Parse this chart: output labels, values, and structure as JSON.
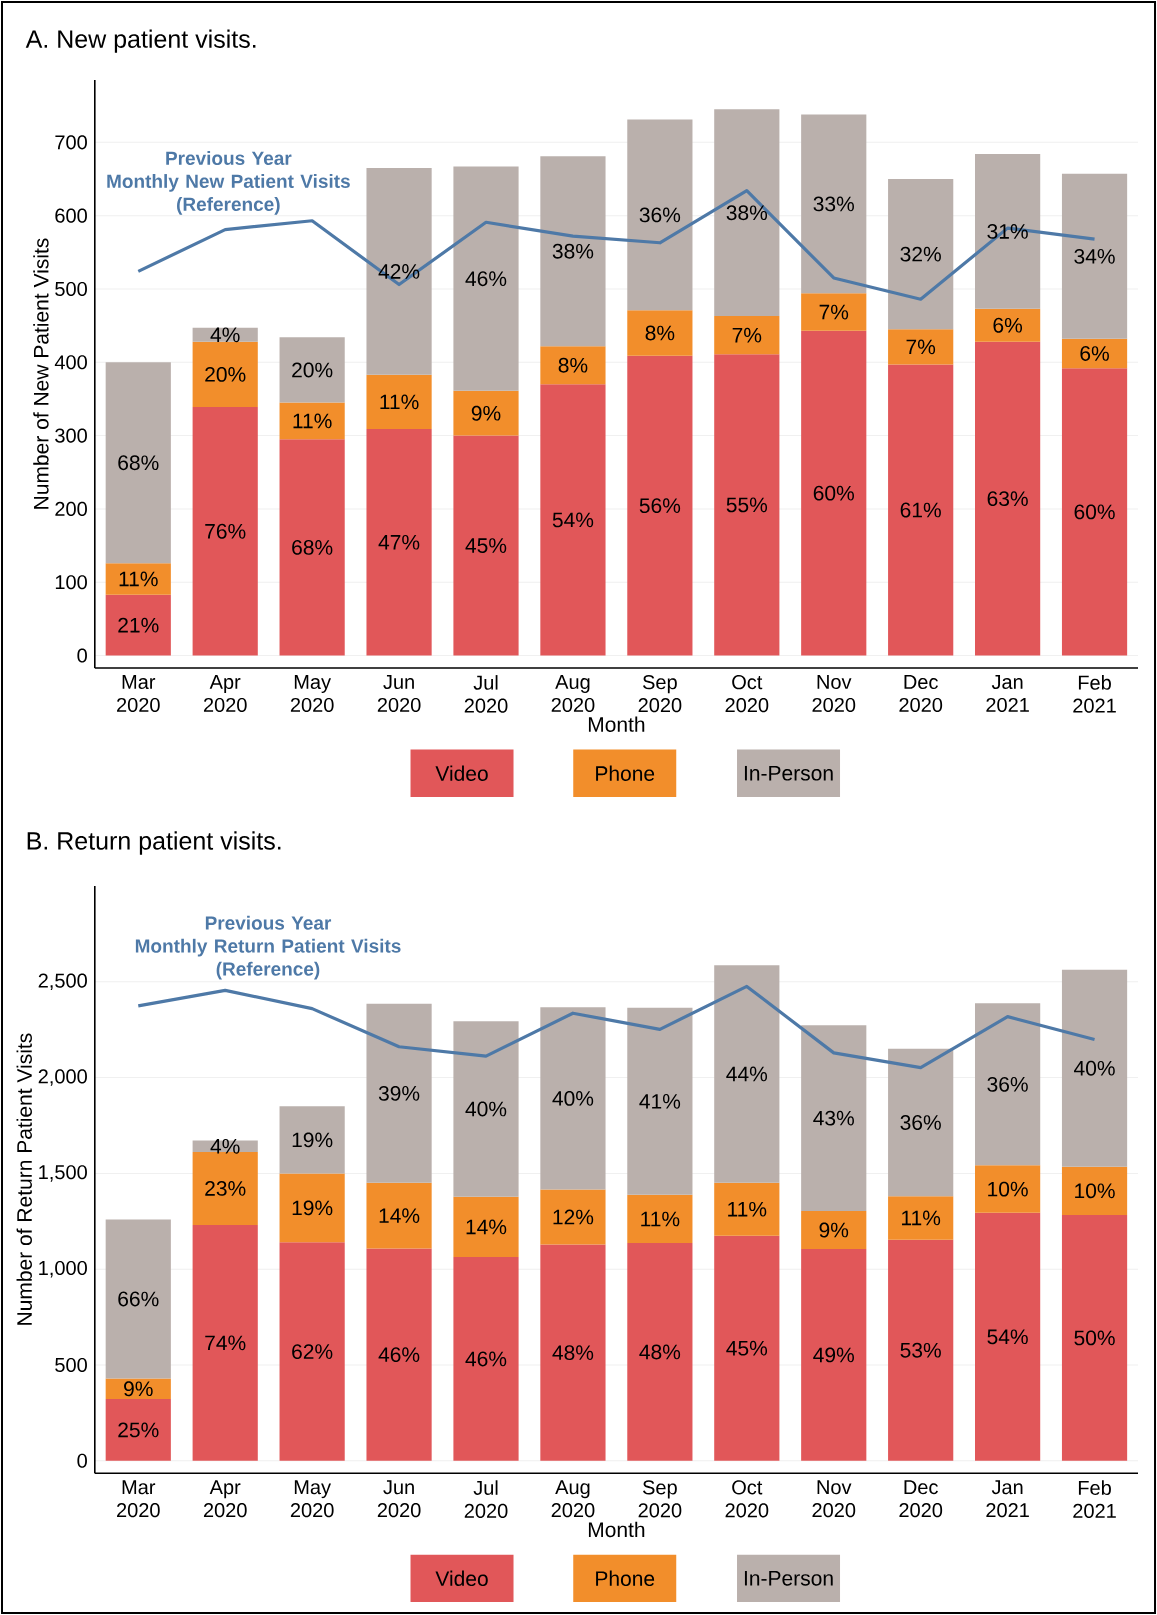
{
  "chart_data": [
    {
      "type": "bar",
      "stacked": true,
      "title": "A. New patient visits.",
      "xlabel": "Month",
      "ylabel": "Number of New Patient Visits",
      "categories": [
        "Mar 2020",
        "Apr 2020",
        "May 2020",
        "Jun 2020",
        "Jul 2020",
        "Aug 2020",
        "Sep 2020",
        "Oct 2020",
        "Nov 2020",
        "Dec 2020",
        "Jan 2021",
        "Feb 2021"
      ],
      "ylim": [
        -17,
        785
      ],
      "yticks": [
        0,
        100,
        200,
        300,
        400,
        500,
        600,
        700
      ],
      "grid": "y",
      "legend": "bottom",
      "series": [
        {
          "name": "Video",
          "color": "#e15759",
          "values": [
            83,
            339,
            295,
            309,
            300,
            370,
            409,
            411,
            443,
            397,
            428,
            392
          ]
        },
        {
          "name": "Phone",
          "color": "#f28e2b",
          "values": [
            43,
            89,
            50,
            74,
            61,
            52,
            62,
            52,
            51,
            48,
            45,
            40
          ]
        },
        {
          "name": "In-Person",
          "color": "#bab0ac",
          "values": [
            274,
            19,
            89,
            282,
            306,
            259,
            260,
            282,
            244,
            205,
            211,
            225
          ]
        },
        {
          "type": "line",
          "name": "Previous Year Monthly New Patient Visits (Reference)",
          "color": "#4e79a7",
          "values": [
            524,
            581,
            593,
            506,
            591,
            572,
            563,
            634,
            515,
            486,
            583,
            568
          ]
        }
      ],
      "annotations": [
        "21%",
        "76%",
        "68%",
        "47%",
        "45%",
        "54%",
        "56%",
        "55%",
        "60%",
        "61%",
        "63%",
        "60%",
        "11%",
        "20%",
        "11%",
        "11%",
        "9%",
        "8%",
        "8%",
        "7%",
        "7%",
        "7%",
        "6%",
        "6%",
        "68%",
        "4%",
        "20%",
        "42%",
        "46%",
        "38%",
        "36%",
        "38%",
        "33%",
        "32%",
        "31%",
        "34%"
      ]
    },
    {
      "type": "bar",
      "stacked": true,
      "title": "B. Return patient visits.",
      "xlabel": "Month",
      "ylabel": "Number of Return Patient Visits",
      "categories": [
        "Mar 2020",
        "Apr 2020",
        "May 2020",
        "Jun 2020",
        "Jul 2020",
        "Aug 2020",
        "Sep 2020",
        "Oct 2020",
        "Nov 2020",
        "Dec 2020",
        "Jan 2021",
        "Feb 2021"
      ],
      "ylim": [
        -65,
        3000
      ],
      "yticks": [
        0,
        500,
        {
          "value": 1000,
          "label": "1,000"
        },
        {
          "value": 1500,
          "label": "1,500"
        },
        {
          "value": 2000,
          "label": "2,000"
        },
        {
          "value": 2500,
          "label": "2,500"
        }
      ],
      "grid": "y",
      "legend": "bottom",
      "series": [
        {
          "name": "Video",
          "color": "#e15759",
          "values": [
            322,
            1231,
            1140,
            1108,
            1063,
            1129,
            1136,
            1175,
            1105,
            1154,
            1294,
            1283
          ]
        },
        {
          "name": "Phone",
          "color": "#f28e2b",
          "values": [
            108,
            381,
            360,
            343,
            315,
            287,
            252,
            276,
            199,
            227,
            248,
            252
          ]
        },
        {
          "name": "In-Person",
          "color": "#bab0ac",
          "values": [
            829,
            59,
            350,
            934,
            916,
            951,
            976,
            1136,
            969,
            769,
            846,
            1028
          ]
        },
        {
          "type": "line",
          "name": "Previous Year Monthly Return Patient Visits (Reference)",
          "color": "#4e79a7",
          "values": [
            2374,
            2455,
            2360,
            2161,
            2112,
            2336,
            2252,
            2476,
            2129,
            2052,
            2318,
            2199
          ]
        }
      ],
      "annotations": [
        "25%",
        "74%",
        "62%",
        "46%",
        "46%",
        "48%",
        "48%",
        "45%",
        "49%",
        "53%",
        "54%",
        "50%",
        "9%",
        "23%",
        "19%",
        "14%",
        "14%",
        "12%",
        "11%",
        "11%",
        "9%",
        "11%",
        "10%",
        "10%",
        "66%",
        "4%",
        "19%",
        "39%",
        "40%",
        "40%",
        "41%",
        "44%",
        "43%",
        "36%",
        "36%",
        "40%"
      ]
    }
  ]
}
